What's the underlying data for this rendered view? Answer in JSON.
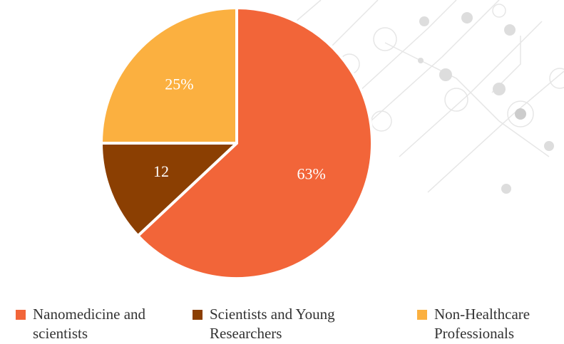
{
  "chart_data": {
    "type": "pie",
    "categories": [
      "Nanomedicine and scientists",
      "Scientists and Young Researchers",
      "Non-Healthcare Professionals"
    ],
    "values": [
      63,
      12,
      25
    ],
    "value_labels": [
      "63%",
      "12",
      "25%"
    ],
    "colors": [
      "#f26539",
      "#8b3f02",
      "#fbb040"
    ]
  }
}
